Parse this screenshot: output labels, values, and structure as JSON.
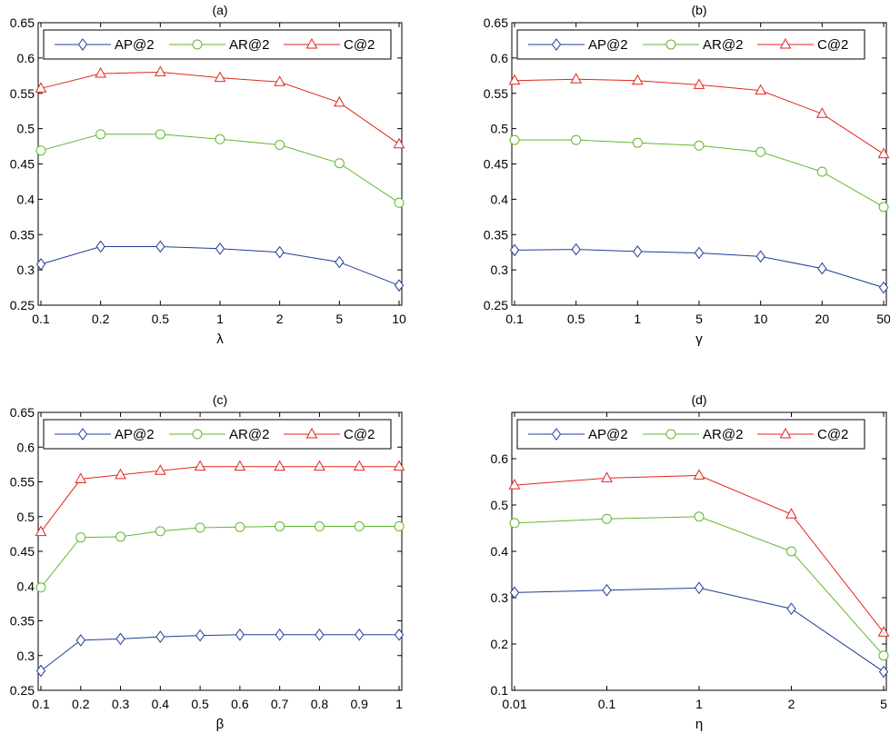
{
  "legend_labels": [
    "AP@2",
    "AR@2",
    "C@2"
  ],
  "colors": {
    "AP@2": "#1f3d99",
    "AR@2": "#5fb82f",
    "C@2": "#e2261a",
    "axis": "#000000"
  },
  "chart_data": [
    {
      "type": "line",
      "title": "(a)",
      "xlabel": "λ",
      "ylabel": "",
      "categories": [
        "0.1",
        "0.2",
        "0.5",
        "1",
        "2",
        "5",
        "10"
      ],
      "ylim": [
        0.25,
        0.65
      ],
      "yticks": [
        "0.25",
        "0.3",
        "0.35",
        "0.4",
        "0.45",
        "0.5",
        "0.55",
        "0.6",
        "0.65"
      ],
      "legend": "top",
      "series": [
        {
          "name": "AP@2",
          "marker": "diamond",
          "values": [
            0.308,
            0.333,
            0.333,
            0.33,
            0.325,
            0.311,
            0.278
          ]
        },
        {
          "name": "AR@2",
          "marker": "circle",
          "values": [
            0.469,
            0.492,
            0.492,
            0.485,
            0.477,
            0.451,
            0.395
          ]
        },
        {
          "name": "C@2",
          "marker": "triangle",
          "values": [
            0.557,
            0.578,
            0.58,
            0.572,
            0.566,
            0.537,
            0.478
          ]
        }
      ]
    },
    {
      "type": "line",
      "title": "(b)",
      "xlabel": "γ",
      "ylabel": "",
      "categories": [
        "0.1",
        "0.5",
        "1",
        "5",
        "10",
        "20",
        "50"
      ],
      "ylim": [
        0.25,
        0.65
      ],
      "yticks": [
        "0.25",
        "0.3",
        "0.35",
        "0.4",
        "0.45",
        "0.5",
        "0.55",
        "0.6",
        "0.65"
      ],
      "legend": "top",
      "series": [
        {
          "name": "AP@2",
          "marker": "diamond",
          "values": [
            0.328,
            0.329,
            0.326,
            0.324,
            0.319,
            0.302,
            0.275
          ]
        },
        {
          "name": "AR@2",
          "marker": "circle",
          "values": [
            0.484,
            0.484,
            0.48,
            0.476,
            0.467,
            0.439,
            0.389
          ]
        },
        {
          "name": "C@2",
          "marker": "triangle",
          "values": [
            0.568,
            0.57,
            0.568,
            0.562,
            0.554,
            0.521,
            0.464
          ]
        }
      ]
    },
    {
      "type": "line",
      "title": "(c)",
      "xlabel": "β",
      "ylabel": "",
      "categories": [
        "0.1",
        "0.2",
        "0.3",
        "0.4",
        "0.5",
        "0.6",
        "0.7",
        "0.8",
        "0.9",
        "1"
      ],
      "ylim": [
        0.25,
        0.65
      ],
      "yticks": [
        "0.25",
        "0.3",
        "0.35",
        "0.4",
        "0.45",
        "0.5",
        "0.55",
        "0.6",
        "0.65"
      ],
      "legend": "top",
      "series": [
        {
          "name": "AP@2",
          "marker": "diamond",
          "values": [
            0.278,
            0.322,
            0.324,
            0.327,
            0.329,
            0.33,
            0.33,
            0.33,
            0.33,
            0.33
          ]
        },
        {
          "name": "AR@2",
          "marker": "circle",
          "values": [
            0.398,
            0.47,
            0.471,
            0.479,
            0.484,
            0.485,
            0.486,
            0.486,
            0.486,
            0.486
          ]
        },
        {
          "name": "C@2",
          "marker": "triangle",
          "values": [
            0.478,
            0.554,
            0.56,
            0.566,
            0.572,
            0.572,
            0.572,
            0.572,
            0.572,
            0.572
          ]
        }
      ]
    },
    {
      "type": "line",
      "title": "(d)",
      "xlabel": "η",
      "ylabel": "",
      "categories": [
        "0.01",
        "0.1",
        "1",
        "2",
        "5"
      ],
      "ylim": [
        0.1,
        0.7
      ],
      "yticks": [
        "0.1",
        "0.2",
        "0.3",
        "0.4",
        "0.5",
        "0.6"
      ],
      "legend": "top",
      "series": [
        {
          "name": "AP@2",
          "marker": "diamond",
          "values": [
            0.311,
            0.316,
            0.321,
            0.276,
            0.14
          ]
        },
        {
          "name": "AR@2",
          "marker": "circle",
          "values": [
            0.461,
            0.47,
            0.475,
            0.4,
            0.175
          ]
        },
        {
          "name": "C@2",
          "marker": "triangle",
          "values": [
            0.543,
            0.558,
            0.564,
            0.48,
            0.225
          ]
        }
      ]
    }
  ]
}
